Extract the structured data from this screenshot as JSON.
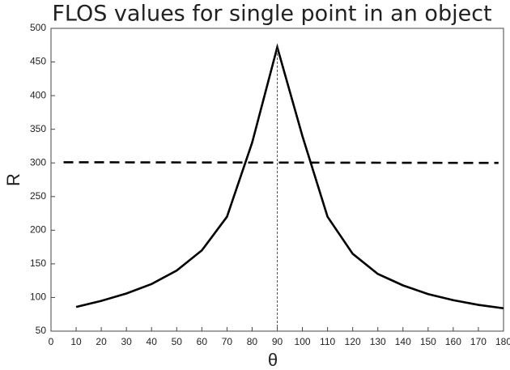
{
  "chart_data": {
    "type": "line",
    "title": "FLOS values for single point in an object",
    "x_label": "θ",
    "y_label": "R",
    "xlim": [
      0,
      180
    ],
    "ylim": [
      50,
      500
    ],
    "xticks": [
      0,
      10,
      20,
      30,
      40,
      50,
      60,
      70,
      80,
      90,
      100,
      110,
      120,
      130,
      140,
      150,
      160,
      170,
      180
    ],
    "yticks": [
      50,
      100,
      150,
      200,
      250,
      300,
      350,
      400,
      450,
      500
    ],
    "series": [
      {
        "color": "#000000",
        "style": "solid",
        "x": [
          10,
          20,
          30,
          40,
          50,
          60,
          70,
          80,
          90,
          100,
          110,
          120,
          130,
          140,
          150,
          160,
          170,
          180
        ],
        "values": [
          86,
          95,
          106,
          120,
          140,
          170,
          220,
          330,
          472,
          340,
          220,
          165,
          135,
          118,
          105,
          96,
          89,
          84
        ]
      },
      {
        "color": "#000000",
        "style": "dashed",
        "x": [
          5,
          178
        ],
        "values": [
          301,
          300
        ]
      },
      {
        "color": "#555555",
        "style": "dotted",
        "x": [
          90,
          90
        ],
        "values": [
          50,
          472
        ]
      }
    ]
  }
}
